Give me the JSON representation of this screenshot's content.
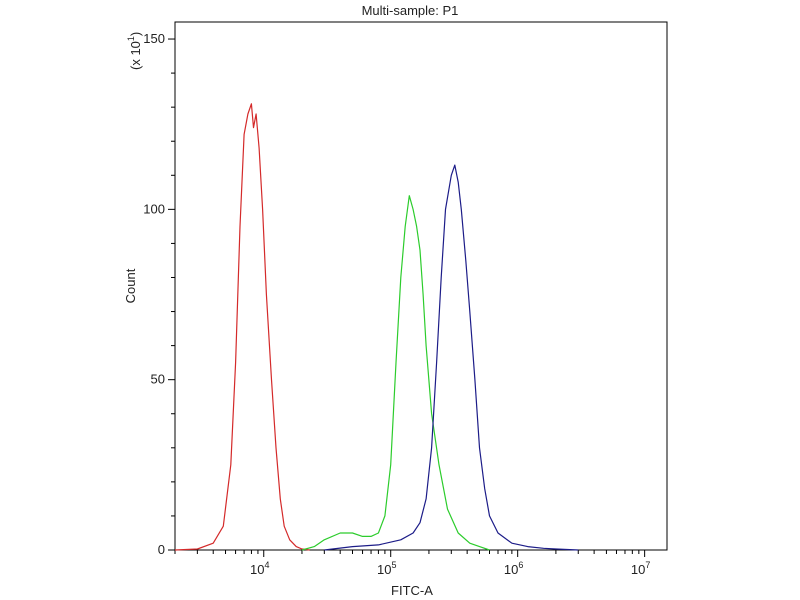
{
  "chart_data": {
    "type": "line",
    "title": "Multi-sample: P1",
    "xlabel": "FITC-A",
    "ylabel": "Count",
    "y_multiplier_label": "(x 10",
    "y_multiplier_exponent": "1",
    "x_scale": "log",
    "xlim": [
      2000,
      15000000
    ],
    "ylim": [
      0,
      155
    ],
    "x_ticks": [
      {
        "base": "10",
        "exp": "4",
        "value": 10000
      },
      {
        "base": "10",
        "exp": "5",
        "value": 100000
      },
      {
        "base": "10",
        "exp": "6",
        "value": 1000000
      },
      {
        "base": "10",
        "exp": "7",
        "value": 10000000
      }
    ],
    "y_ticks": [
      {
        "label": "0",
        "value": 0
      },
      {
        "label": "50",
        "value": 50
      },
      {
        "label": "100",
        "value": 100
      },
      {
        "label": "150",
        "value": 150
      }
    ],
    "grid": false,
    "legend": "none",
    "series": [
      {
        "color": "#d42a2a",
        "x": [
          2000,
          3000,
          4000,
          4800,
          5500,
          6000,
          6500,
          7000,
          7500,
          8000,
          8300,
          8700,
          9200,
          9800,
          10500,
          11500,
          12500,
          13500,
          14500,
          16000,
          18000,
          20000,
          23000
        ],
        "y": [
          0,
          0.3,
          2,
          7,
          25,
          55,
          95,
          122,
          128,
          131,
          124,
          128,
          118,
          100,
          75,
          50,
          30,
          15,
          7,
          3,
          1,
          0.3,
          0
        ]
      },
      {
        "color": "#2ccc2c",
        "x": [
          20000,
          25000,
          30000,
          40000,
          50000,
          60000,
          70000,
          80000,
          90000,
          100000,
          110000,
          120000,
          130000,
          140000,
          150000,
          160000,
          170000,
          180000,
          190000,
          210000,
          240000,
          280000,
          340000,
          420000,
          500000,
          600000
        ],
        "y": [
          0,
          1,
          3,
          5,
          5,
          4,
          4,
          5,
          10,
          25,
          55,
          80,
          95,
          104,
          100,
          95,
          88,
          75,
          60,
          40,
          25,
          12,
          5,
          2,
          1,
          0
        ]
      },
      {
        "color": "#1c1c88",
        "x": [
          30000,
          50000,
          80000,
          120000,
          150000,
          170000,
          190000,
          210000,
          230000,
          250000,
          270000,
          300000,
          320000,
          340000,
          360000,
          390000,
          420000,
          460000,
          500000,
          550000,
          600000,
          700000,
          900000,
          1200000,
          1600000,
          2000000,
          3000000
        ],
        "y": [
          0,
          1,
          1.5,
          3,
          5,
          8,
          15,
          30,
          55,
          80,
          100,
          110,
          113,
          108,
          100,
          85,
          70,
          50,
          30,
          18,
          10,
          5,
          2,
          1,
          0.5,
          0.3,
          0
        ]
      }
    ]
  }
}
